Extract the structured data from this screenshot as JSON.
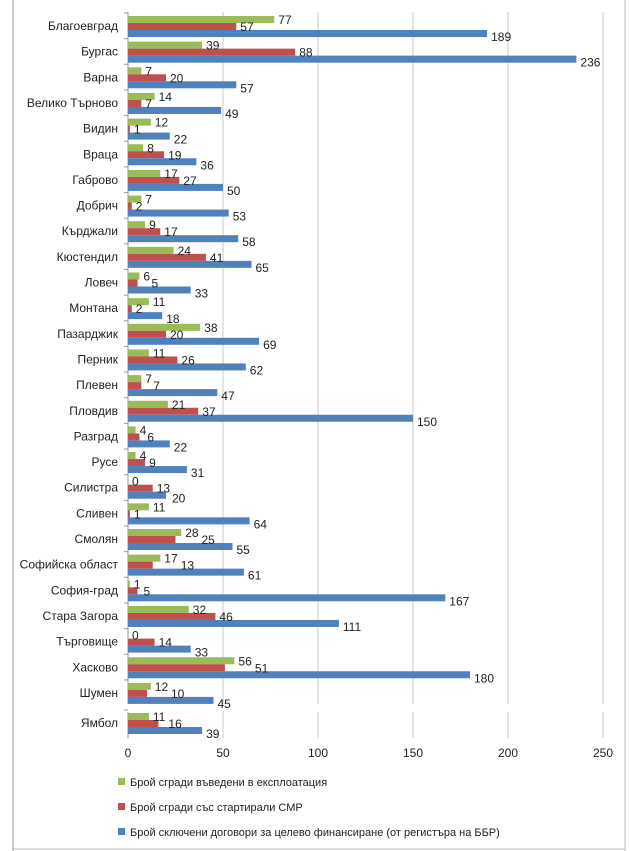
{
  "chart_data": {
    "type": "bar",
    "orientation": "horizontal",
    "categories": [
      "Благоевград",
      "Бургас",
      "Варна",
      "Велико Търново",
      "Видин",
      "Враца",
      "Габрово",
      "Добрич",
      "Кърджали",
      "Кюстендил",
      "Ловеч",
      "Монтана",
      "Пазарджик",
      "Перник",
      "Плевен",
      "Пловдив",
      "Разград",
      "Русе",
      "Силистра",
      "Сливен",
      "Смолян",
      "Софийска област",
      "София-град",
      "Стара Загора",
      "Търговище",
      "Хасково",
      "Шумен",
      "Ямбол"
    ],
    "series": [
      {
        "name": "Брой сгради въведени  в експлоатация",
        "color": "#9bbb59",
        "values": [
          77,
          39,
          7,
          14,
          12,
          8,
          17,
          7,
          9,
          24,
          6,
          11,
          38,
          11,
          7,
          21,
          4,
          4,
          0,
          11,
          28,
          17,
          1,
          32,
          0,
          56,
          12,
          11
        ]
      },
      {
        "name": "Брой сгради със стартирали  СМР",
        "color": "#c0504d",
        "values": [
          57,
          88,
          20,
          7,
          1,
          19,
          27,
          2,
          17,
          41,
          5,
          2,
          20,
          26,
          7,
          37,
          6,
          9,
          13,
          1,
          25,
          13,
          5,
          46,
          14,
          51,
          10,
          16
        ]
      },
      {
        "name": "Брой сключени договори за целево финансиране (от регистъра на ББР)",
        "color": "#4f81bd",
        "values": [
          189,
          236,
          57,
          49,
          22,
          36,
          50,
          53,
          58,
          65,
          33,
          18,
          69,
          62,
          47,
          150,
          22,
          31,
          20,
          64,
          55,
          61,
          167,
          111,
          33,
          180,
          45,
          39
        ]
      }
    ],
    "xlim": [
      0,
      250
    ],
    "xticks": [
      "0",
      "50",
      "100",
      "150",
      "200",
      "250"
    ],
    "grid": true,
    "data_labels": true,
    "legend": "bottom"
  }
}
